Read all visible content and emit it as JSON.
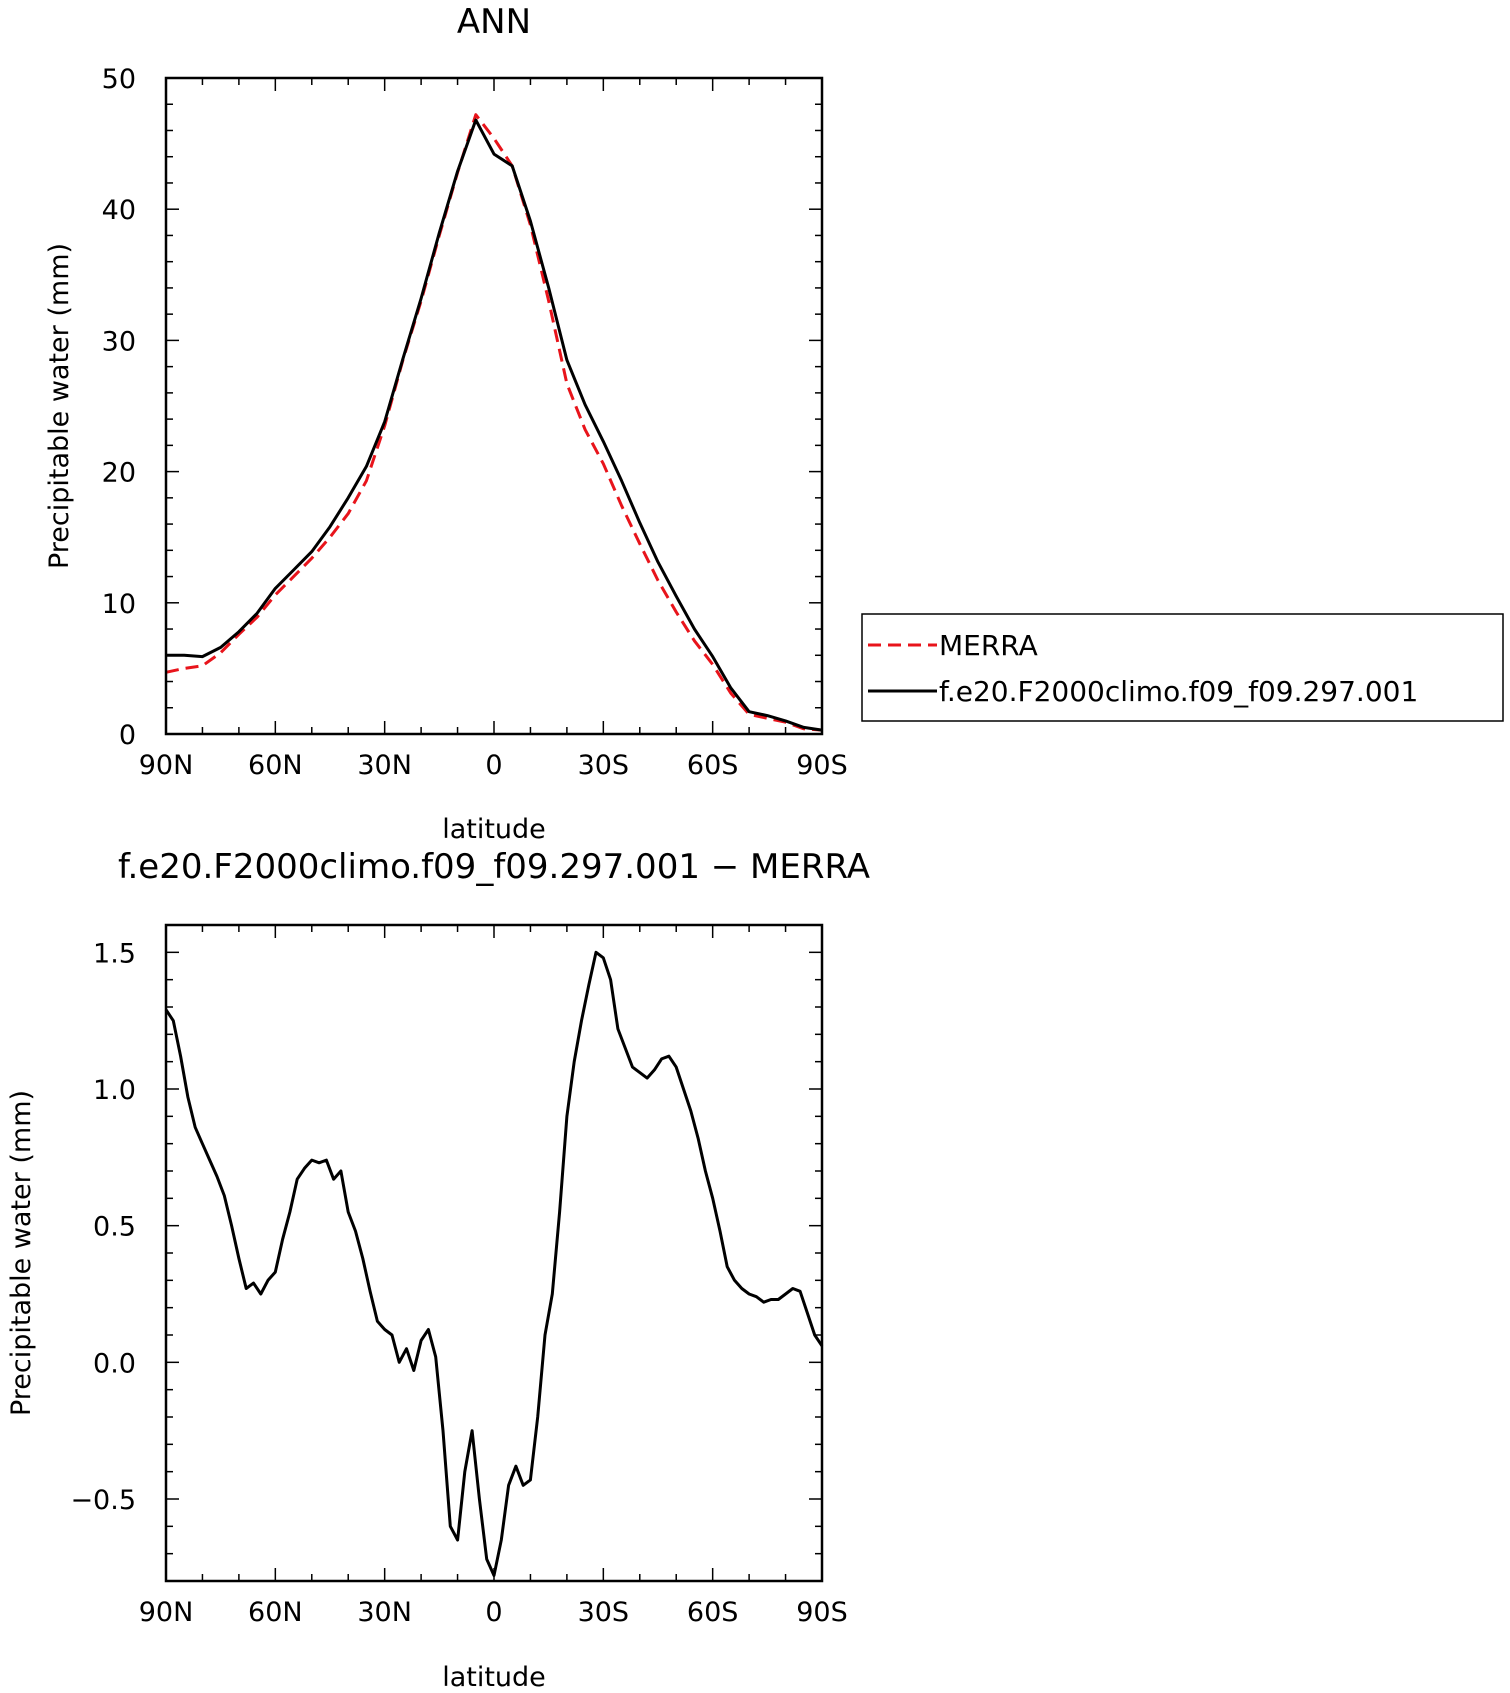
{
  "chart_data": [
    {
      "type": "line",
      "title": "ANN",
      "xlabel": "latitude",
      "ylabel": "Precipitable water (mm)",
      "xlim": [
        90,
        -90
      ],
      "ylim": [
        0,
        50
      ],
      "x_ticks": [
        90,
        60,
        30,
        0,
        -30,
        -60,
        -90
      ],
      "x_tick_labels": [
        "90N",
        "60N",
        "30N",
        "0",
        "30S",
        "60S",
        "90S"
      ],
      "y_ticks": [
        0,
        10,
        20,
        30,
        40,
        50
      ],
      "y_tick_labels": [
        "0",
        "10",
        "20",
        "30",
        "40",
        "50"
      ],
      "grid": false,
      "legend_position": "right",
      "series": [
        {
          "name": "MERRA",
          "color": "#e8141b",
          "dash": "dashed",
          "x": [
            90,
            85,
            80,
            75,
            70,
            65,
            60,
            55,
            50,
            45,
            40,
            35,
            30,
            25,
            20,
            15,
            10,
            5,
            0,
            -5,
            -10,
            -15,
            -20,
            -25,
            -30,
            -35,
            -40,
            -45,
            -50,
            -55,
            -60,
            -65,
            -70,
            -75,
            -80,
            -85,
            -90
          ],
          "y": [
            4.7,
            5.0,
            5.2,
            6.2,
            7.6,
            8.9,
            10.6,
            12.0,
            13.4,
            15.0,
            16.8,
            19.3,
            23.5,
            28.5,
            33.0,
            38.0,
            42.8,
            47.2,
            45.4,
            43.3,
            38.8,
            33.0,
            26.7,
            23.2,
            20.6,
            17.4,
            14.5,
            11.7,
            9.3,
            7.1,
            5.3,
            3.1,
            1.5,
            1.2,
            0.9,
            0.4,
            0.3
          ]
        },
        {
          "name": "f.e20.F2000climo.f09_f09.297.001",
          "color": "#000000",
          "dash": "solid",
          "x": [
            90,
            85,
            80,
            75,
            70,
            65,
            60,
            55,
            50,
            45,
            40,
            35,
            30,
            25,
            20,
            15,
            10,
            5,
            0,
            -5,
            -10,
            -15,
            -20,
            -25,
            -30,
            -35,
            -40,
            -45,
            -50,
            -55,
            -60,
            -65,
            -70,
            -75,
            -80,
            -85,
            -90
          ],
          "y": [
            6.0,
            6.0,
            5.9,
            6.6,
            7.8,
            9.2,
            11.1,
            12.5,
            13.9,
            15.8,
            18.0,
            20.4,
            23.8,
            28.6,
            33.2,
            38.2,
            42.9,
            46.8,
            44.2,
            43.3,
            39.1,
            34.0,
            28.5,
            25.1,
            22.3,
            19.3,
            16.1,
            13.1,
            10.5,
            8.0,
            5.9,
            3.5,
            1.7,
            1.4,
            1.0,
            0.5,
            0.3
          ]
        }
      ]
    },
    {
      "type": "line",
      "title": "f.e20.F2000climo.f09_f09.297.001 − MERRA",
      "xlabel": "latitude",
      "ylabel": "Precipitable water (mm)",
      "xlim": [
        90,
        -90
      ],
      "ylim": [
        -0.8,
        1.6
      ],
      "x_ticks": [
        90,
        60,
        30,
        0,
        -30,
        -60,
        -90
      ],
      "x_tick_labels": [
        "90N",
        "60N",
        "30N",
        "0",
        "30S",
        "60S",
        "90S"
      ],
      "y_ticks": [
        -0.5,
        0.0,
        0.5,
        1.0,
        1.5
      ],
      "y_tick_labels": [
        "−0.5",
        "0.0",
        "0.5",
        "1.0",
        "1.5"
      ],
      "grid": false,
      "series": [
        {
          "color": "#000000",
          "dash": "solid",
          "x": [
            90,
            88,
            86,
            84,
            82,
            80,
            78,
            76,
            74,
            72,
            70,
            68,
            66,
            64,
            62,
            60,
            58,
            56,
            54,
            52,
            50,
            48,
            46,
            44,
            42,
            40,
            38,
            36,
            34,
            32,
            30,
            28,
            26,
            24,
            22,
            20,
            18,
            16,
            14,
            12,
            10,
            8,
            6,
            4,
            2,
            0,
            -2,
            -4,
            -6,
            -8,
            -10,
            -12,
            -14,
            -16,
            -18,
            -20,
            -22,
            -24,
            -26,
            -28,
            -30,
            -32,
            -34,
            -36,
            -38,
            -40,
            -42,
            -44,
            -46,
            -48,
            -50,
            -52,
            -54,
            -56,
            -58,
            -60,
            -62,
            -64,
            -66,
            -68,
            -70,
            -72,
            -74,
            -76,
            -78,
            -80,
            -82,
            -84,
            -86,
            -88,
            -90
          ],
          "y": [
            1.29,
            1.25,
            1.12,
            0.97,
            0.86,
            0.8,
            0.74,
            0.68,
            0.61,
            0.5,
            0.38,
            0.27,
            0.29,
            0.25,
            0.3,
            0.33,
            0.45,
            0.55,
            0.67,
            0.71,
            0.74,
            0.73,
            0.74,
            0.67,
            0.7,
            0.55,
            0.48,
            0.38,
            0.26,
            0.15,
            0.12,
            0.1,
            0.0,
            0.05,
            -0.03,
            0.08,
            0.12,
            0.02,
            -0.25,
            -0.6,
            -0.65,
            -0.4,
            -0.25,
            -0.5,
            -0.72,
            -0.78,
            -0.65,
            -0.45,
            -0.38,
            -0.45,
            -0.43,
            -0.2,
            0.1,
            0.25,
            0.55,
            0.9,
            1.1,
            1.25,
            1.38,
            1.5,
            1.48,
            1.4,
            1.22,
            1.15,
            1.08,
            1.06,
            1.04,
            1.07,
            1.11,
            1.12,
            1.08,
            1.0,
            0.92,
            0.82,
            0.7,
            0.6,
            0.48,
            0.35,
            0.3,
            0.27,
            0.25,
            0.24,
            0.22,
            0.23,
            0.23,
            0.25,
            0.27,
            0.26,
            0.18,
            0.1,
            0.06
          ]
        }
      ]
    }
  ]
}
